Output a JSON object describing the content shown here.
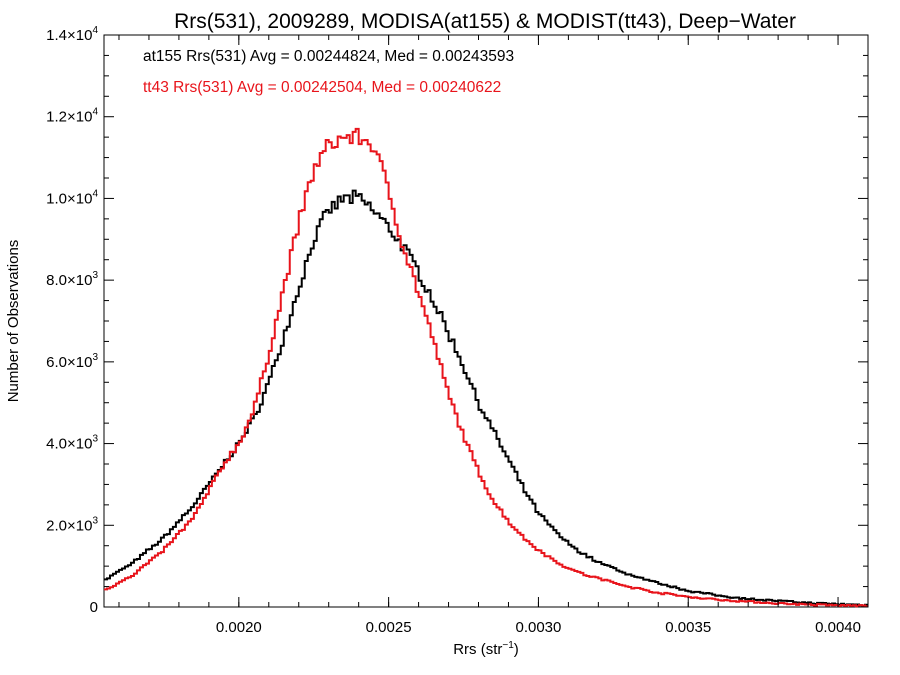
{
  "chart_data": {
    "type": "line",
    "title": "Rrs(531), 2009289, MODISA(at155) & MODIST(tt43), Deep−Water",
    "xlabel_main": "Rrs (str",
    "xlabel_sup": "−1",
    "xlabel_close": ")",
    "ylabel": "Number of Observations",
    "xlim": [
      0.00155,
      0.0041
    ],
    "ylim": [
      0,
      14000
    ],
    "x_ticks": [
      {
        "value": 0.002,
        "label": "0.0020"
      },
      {
        "value": 0.0025,
        "label": "0.0025"
      },
      {
        "value": 0.003,
        "label": "0.0030"
      },
      {
        "value": 0.0035,
        "label": "0.0035"
      },
      {
        "value": 0.004,
        "label": "0.0040"
      }
    ],
    "y_ticks": [
      {
        "value": 0,
        "mant": "0",
        "exp": ""
      },
      {
        "value": 2000,
        "mant": "2.0×10",
        "exp": "3"
      },
      {
        "value": 4000,
        "mant": "4.0×10",
        "exp": "3"
      },
      {
        "value": 6000,
        "mant": "6.0×10",
        "exp": "3"
      },
      {
        "value": 8000,
        "mant": "8.0×10",
        "exp": "3"
      },
      {
        "value": 10000,
        "mant": "1.0×10",
        "exp": "4"
      },
      {
        "value": 12000,
        "mant": "1.2×10",
        "exp": "4"
      },
      {
        "value": 14000,
        "mant": "1.4×10",
        "exp": "4"
      }
    ],
    "annotations": [
      {
        "text": "at155 Rrs(531) Avg = 0.00244824, Med = 0.00243593",
        "color": "#000000"
      },
      {
        "text": "tt43 Rrs(531) Avg = 0.00242504, Med = 0.00240622",
        "color": "#e8141b"
      }
    ],
    "grid": false,
    "series": [
      {
        "color": "#000000",
        "x": [
          0.00155,
          0.00165,
          0.00175,
          0.00185,
          0.00195,
          0.002,
          0.00205,
          0.0021,
          0.00215,
          0.0022,
          0.00225,
          0.0023,
          0.00235,
          0.0024,
          0.00245,
          0.0025,
          0.00255,
          0.0026,
          0.00265,
          0.0027,
          0.00275,
          0.0028,
          0.00285,
          0.0029,
          0.00295,
          0.003,
          0.00305,
          0.0031,
          0.00315,
          0.0032,
          0.0033,
          0.0034,
          0.0035,
          0.0036,
          0.0037,
          0.0038,
          0.0039,
          0.004,
          0.0041
        ],
        "y": [
          650,
          1100,
          1700,
          2500,
          3500,
          4000,
          4600,
          5500,
          6600,
          7800,
          9000,
          9700,
          10000,
          10000,
          9700,
          9300,
          8800,
          8200,
          7500,
          6700,
          5900,
          5000,
          4300,
          3600,
          2900,
          2300,
          1900,
          1550,
          1300,
          1100,
          800,
          580,
          400,
          280,
          200,
          150,
          100,
          70,
          50
        ]
      },
      {
        "color": "#e8141b",
        "x": [
          0.00155,
          0.00165,
          0.00175,
          0.00185,
          0.00195,
          0.002,
          0.00205,
          0.0021,
          0.00215,
          0.0022,
          0.00225,
          0.0023,
          0.00235,
          0.0024,
          0.00245,
          0.0025,
          0.00255,
          0.0026,
          0.00265,
          0.0027,
          0.00275,
          0.0028,
          0.00285,
          0.0029,
          0.00295,
          0.003,
          0.00305,
          0.0031,
          0.00315,
          0.0032,
          0.0033,
          0.0034,
          0.0035,
          0.0036,
          0.0037,
          0.0038,
          0.0039,
          0.004,
          0.0041
        ],
        "y": [
          400,
          800,
          1400,
          2200,
          3500,
          4000,
          4800,
          6200,
          7800,
          9400,
          10700,
          11300,
          11500,
          11500,
          11300,
          10200,
          8800,
          7700,
          6500,
          5200,
          4200,
          3300,
          2600,
          2100,
          1700,
          1400,
          1150,
          950,
          800,
          700,
          500,
          350,
          250,
          180,
          130,
          90,
          60,
          40,
          30
        ]
      }
    ]
  }
}
